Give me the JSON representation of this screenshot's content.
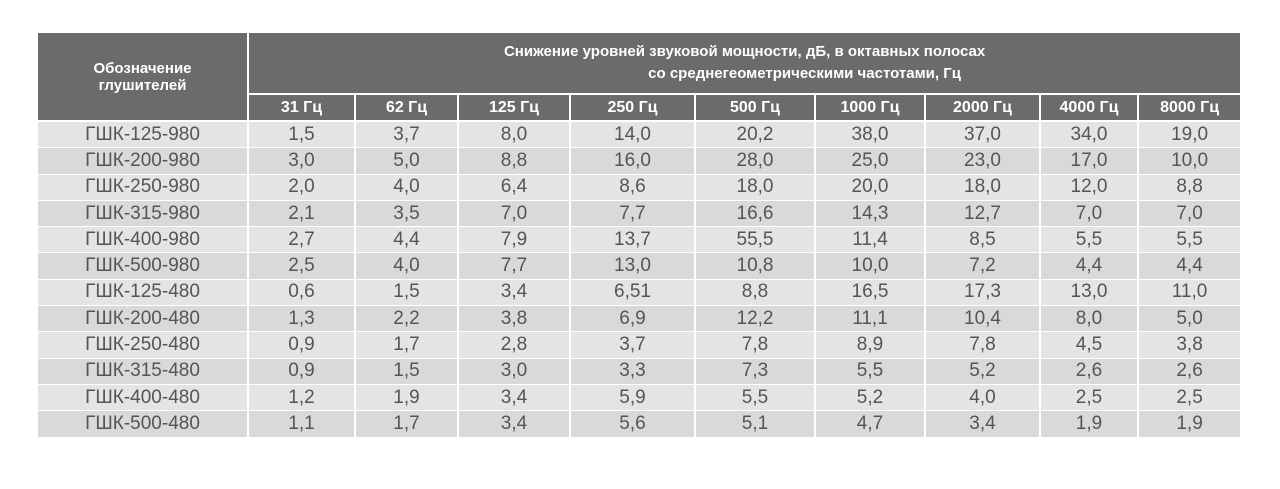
{
  "table": {
    "header": {
      "name_column": "Обозначение глушителей",
      "group_title": [
        "Снижение уровней звуковой мощности, дБ, в октавных полосах",
        "со среднегеометрическими частотами, Гц"
      ]
    },
    "columns": [
      "31 Гц",
      "62 Гц",
      "125 Гц",
      "250 Гц",
      "500 Гц",
      "1000 Гц",
      "2000 Гц",
      "4000 Гц",
      "8000 Гц"
    ],
    "rows": [
      [
        "ГШК-125-980",
        "1,5",
        "3,7",
        "8,0",
        "14,0",
        "20,2",
        "38,0",
        "37,0",
        "34,0",
        "19,0"
      ],
      [
        "ГШК-200-980",
        "3,0",
        "5,0",
        "8,8",
        "16,0",
        "28,0",
        "25,0",
        "23,0",
        "17,0",
        "10,0"
      ],
      [
        "ГШК-250-980",
        "2,0",
        "4,0",
        "6,4",
        "8,6",
        "18,0",
        "20,0",
        "18,0",
        "12,0",
        "8,8"
      ],
      [
        "ГШК-315-980",
        "2,1",
        "3,5",
        "7,0",
        "7,7",
        "16,6",
        "14,3",
        "12,7",
        "7,0",
        "7,0"
      ],
      [
        "ГШК-400-980",
        "2,7",
        "4,4",
        "7,9",
        "13,7",
        "55,5",
        "11,4",
        "8,5",
        "5,5",
        "5,5"
      ],
      [
        "ГШК-500-980",
        "2,5",
        "4,0",
        "7,7",
        "13,0",
        "10,8",
        "10,0",
        "7,2",
        "4,4",
        "4,4"
      ],
      [
        "ГШК-125-480",
        "0,6",
        "1,5",
        "3,4",
        "6,51",
        "8,8",
        "16,5",
        "17,3",
        "13,0",
        "11,0"
      ],
      [
        "ГШК-200-480",
        "1,3",
        "2,2",
        "3,8",
        "6,9",
        "12,2",
        "11,1",
        "10,4",
        "8,0",
        "5,0"
      ],
      [
        "ГШК-250-480",
        "0,9",
        "1,7",
        "2,8",
        "3,7",
        "7,8",
        "8,9",
        "7,8",
        "4,5",
        "3,8"
      ],
      [
        "ГШК-315-480",
        "0,9",
        "1,5",
        "3,0",
        "3,3",
        "7,3",
        "5,5",
        "5,2",
        "2,6",
        "2,6"
      ],
      [
        "ГШК-400-480",
        "1,2",
        "1,9",
        "3,4",
        "5,9",
        "5,5",
        "5,2",
        "4,0",
        "2,5",
        "2,5"
      ],
      [
        "ГШК-500-480",
        "1,1",
        "1,7",
        "3,4",
        "5,6",
        "5,1",
        "4,7",
        "3,4",
        "1,9",
        "1,9"
      ]
    ]
  }
}
